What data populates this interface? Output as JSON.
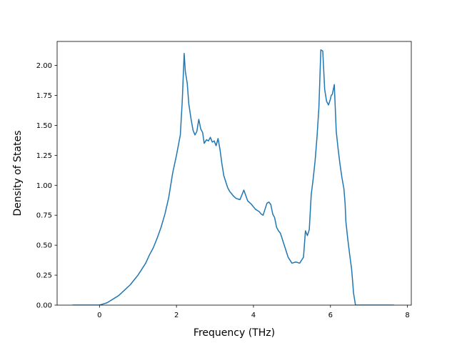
{
  "chart_data": {
    "type": "line",
    "title": "",
    "xlabel": "Frequency (THz)",
    "ylabel": "Density of States",
    "xlim": [
      -1.1,
      8.1
    ],
    "ylim": [
      0.0,
      2.2
    ],
    "xticks": [
      0,
      2,
      4,
      6,
      8
    ],
    "xtick_labels": [
      "0",
      "2",
      "4",
      "6",
      "8"
    ],
    "yticks": [
      0.0,
      0.25,
      0.5,
      0.75,
      1.0,
      1.25,
      1.5,
      1.75,
      2.0
    ],
    "ytick_labels": [
      "0.00",
      "0.25",
      "0.50",
      "0.75",
      "1.00",
      "1.25",
      "1.50",
      "1.75",
      "2.00"
    ],
    "grid": false,
    "line_color": "#1f77b4",
    "series": [
      {
        "x": [
          -0.7,
          -0.4,
          -0.1,
          0.0,
          0.1,
          0.2,
          0.3,
          0.4,
          0.5,
          0.6,
          0.7,
          0.8,
          0.9,
          1.0,
          1.1,
          1.2,
          1.3,
          1.4,
          1.5,
          1.6,
          1.7,
          1.8,
          1.9,
          2.0,
          2.1,
          2.15,
          2.2,
          2.23,
          2.28,
          2.32,
          2.38,
          2.43,
          2.48,
          2.53,
          2.58,
          2.63,
          2.68,
          2.72,
          2.78,
          2.83,
          2.88,
          2.93,
          2.98,
          3.03,
          3.08,
          3.13,
          3.18,
          3.23,
          3.28,
          3.33,
          3.38,
          3.43,
          3.48,
          3.55,
          3.65,
          3.75,
          3.85,
          3.95,
          4.05,
          4.1,
          4.15,
          4.2,
          4.25,
          4.3,
          4.35,
          4.4,
          4.45,
          4.5,
          4.55,
          4.6,
          4.65,
          4.7,
          4.75,
          4.8,
          4.85,
          4.9,
          5.0,
          5.1,
          5.2,
          5.3,
          5.35,
          5.4,
          5.45,
          5.5,
          5.55,
          5.6,
          5.65,
          5.7,
          5.75,
          5.8,
          5.85,
          5.9,
          5.95,
          6.0,
          6.02,
          6.05,
          6.1,
          6.15,
          6.2,
          6.25,
          6.3,
          6.35,
          6.38,
          6.4,
          6.45,
          6.5,
          6.55,
          6.6,
          6.65,
          6.7,
          6.75,
          6.8,
          6.85,
          6.9,
          6.95,
          7.0,
          7.05,
          7.3,
          7.65
        ],
        "y": [
          0.0,
          0.0,
          0.0,
          0.0,
          0.01,
          0.02,
          0.04,
          0.06,
          0.08,
          0.11,
          0.14,
          0.17,
          0.21,
          0.25,
          0.3,
          0.35,
          0.42,
          0.48,
          0.56,
          0.65,
          0.76,
          0.9,
          1.1,
          1.25,
          1.42,
          1.7,
          2.1,
          1.95,
          1.85,
          1.68,
          1.55,
          1.46,
          1.42,
          1.45,
          1.55,
          1.47,
          1.44,
          1.35,
          1.38,
          1.37,
          1.4,
          1.36,
          1.37,
          1.33,
          1.39,
          1.3,
          1.18,
          1.08,
          1.03,
          0.98,
          0.95,
          0.93,
          0.91,
          0.89,
          0.88,
          0.96,
          0.87,
          0.84,
          0.8,
          0.79,
          0.78,
          0.76,
          0.75,
          0.8,
          0.85,
          0.86,
          0.84,
          0.76,
          0.73,
          0.65,
          0.62,
          0.6,
          0.55,
          0.5,
          0.45,
          0.4,
          0.35,
          0.36,
          0.35,
          0.4,
          0.62,
          0.58,
          0.63,
          0.92,
          1.05,
          1.2,
          1.4,
          1.65,
          2.13,
          2.12,
          1.8,
          1.7,
          1.67,
          1.72,
          1.75,
          1.76,
          1.84,
          1.45,
          1.3,
          1.17,
          1.06,
          0.97,
          0.85,
          0.7,
          0.55,
          0.42,
          0.3,
          0.1,
          0.0,
          0.0,
          0.0,
          0.0,
          0.0,
          0.0,
          0.0,
          0.0,
          0.0,
          0.0,
          0.0
        ]
      }
    ]
  }
}
